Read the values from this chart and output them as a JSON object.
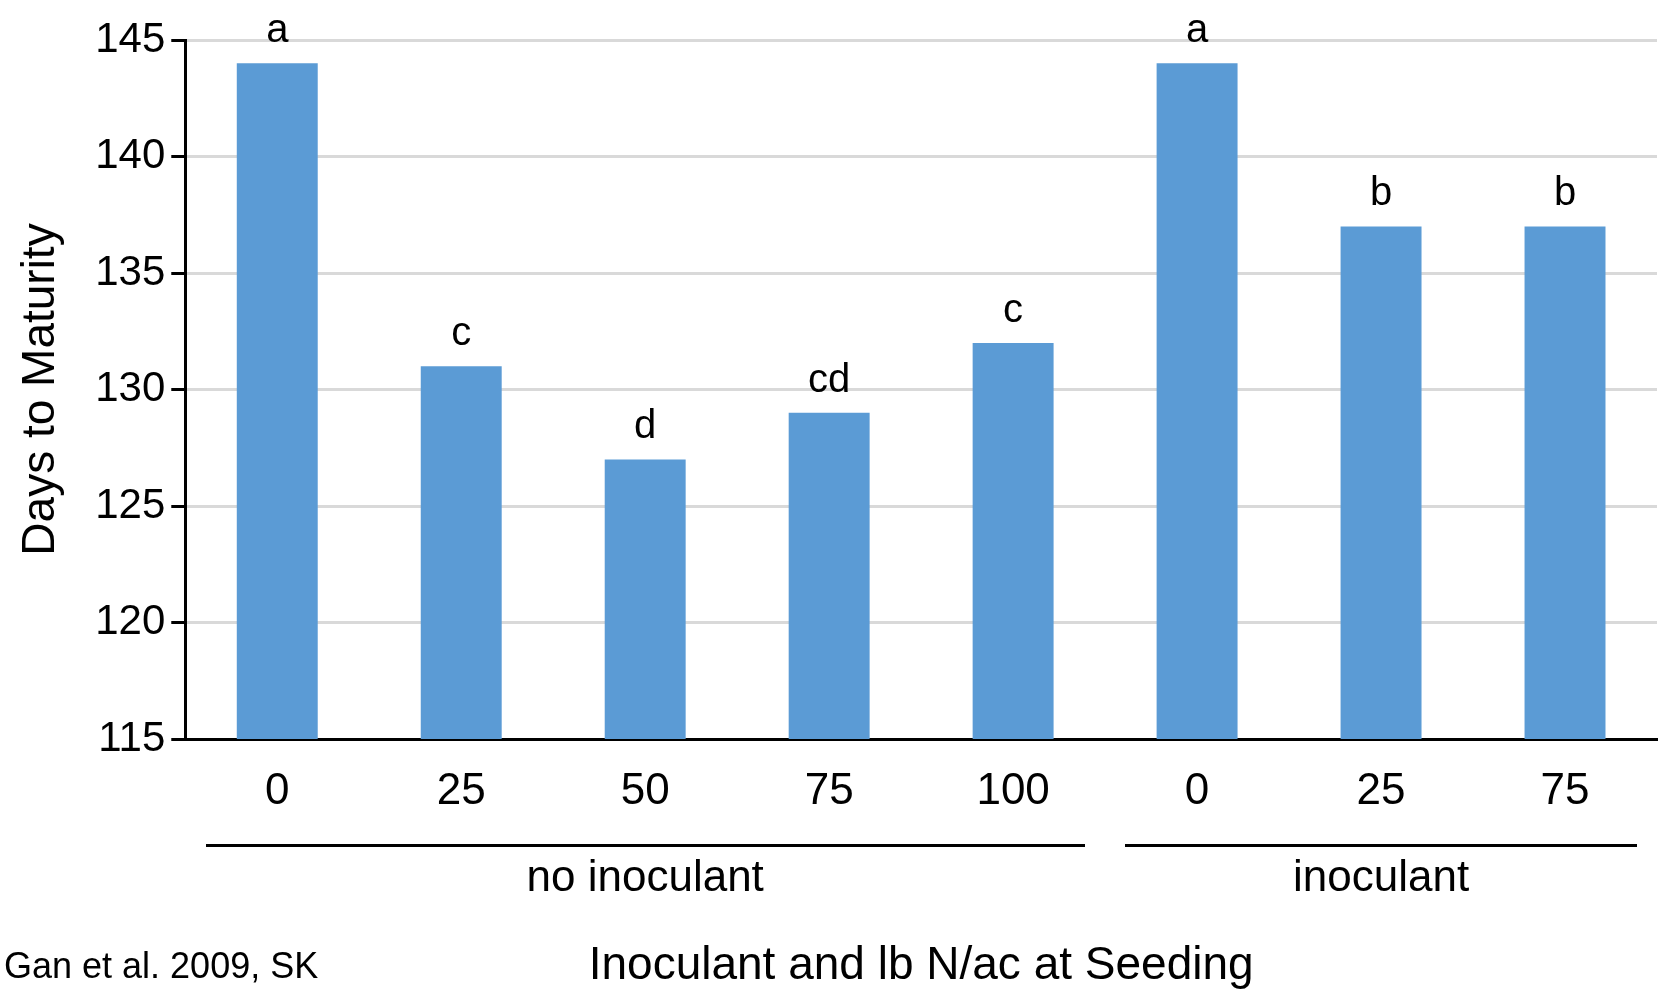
{
  "chart_data": {
    "type": "bar",
    "xlabel": "Inoculant and lb N/ac at Seeding",
    "ylabel": "Days to Maturity",
    "categories": [
      "0",
      "25",
      "50",
      "75",
      "100",
      "0",
      "25",
      "75"
    ],
    "values": [
      144,
      131,
      127,
      129,
      132,
      144,
      137,
      137
    ],
    "value_labels": [
      "a",
      "c",
      "d",
      "cd",
      "c",
      "a",
      "b",
      "b"
    ],
    "color": "#5b9bd5",
    "ylim": [
      115,
      145
    ],
    "yticks": [
      115,
      120,
      125,
      130,
      135,
      140,
      145
    ],
    "grid": "y",
    "legend": false,
    "annotations": [
      "no inoculant",
      "inoculant",
      "Gan et al. 2009, SK"
    ]
  }
}
